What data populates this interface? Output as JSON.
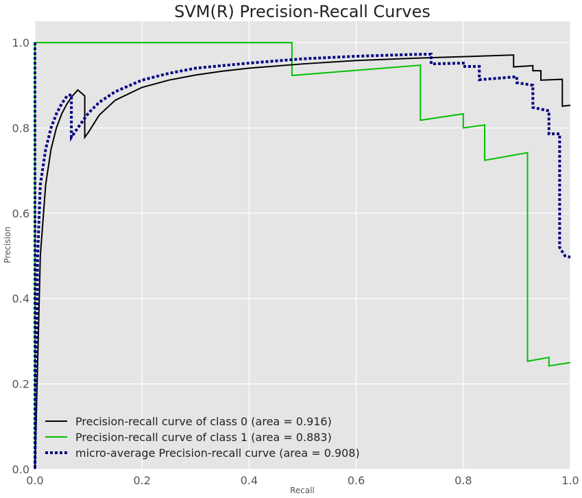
{
  "chart_data": {
    "type": "line",
    "title": "SVM(R) Precision-Recall Curves",
    "xlabel": "Recall",
    "ylabel": "Precision",
    "xlim": [
      0,
      1
    ],
    "ylim": [
      0,
      1.05
    ],
    "xticks": [
      "0.0",
      "0.2",
      "0.4",
      "0.6",
      "0.8",
      "1.0"
    ],
    "yticks": [
      "0.0",
      "0.2",
      "0.4",
      "0.6",
      "0.8",
      "1.0"
    ],
    "grid": true,
    "legend_position": "lower-left",
    "background_color": "#e5e5e5",
    "series": [
      {
        "name": "Precision-recall curve of class 0 (area = 0.916)",
        "color": "#000000",
        "style": "solid",
        "x": [
          0,
          0.005,
          0.01,
          0.02,
          0.03,
          0.04,
          0.05,
          0.06,
          0.07,
          0.08,
          0.093,
          0.093,
          0.1,
          0.12,
          0.15,
          0.2,
          0.25,
          0.3,
          0.35,
          0.4,
          0.5,
          0.6,
          0.7,
          0.8,
          0.894,
          0.894,
          0.93,
          0.93,
          0.945,
          0.945,
          0.985,
          0.985,
          1.0
        ],
        "y": [
          0,
          0.25,
          0.5,
          0.667,
          0.75,
          0.8,
          0.833,
          0.857,
          0.875,
          0.889,
          0.875,
          0.778,
          0.79,
          0.83,
          0.865,
          0.895,
          0.912,
          0.924,
          0.933,
          0.94,
          0.95,
          0.958,
          0.963,
          0.967,
          0.971,
          0.943,
          0.946,
          0.934,
          0.934,
          0.912,
          0.914,
          0.851,
          0.853
        ]
      },
      {
        "name": "Precision-recall curve of class 1 (area = 0.883)",
        "color": "#00c000",
        "style": "solid",
        "x": [
          0,
          0,
          0.48,
          0.48,
          0.72,
          0.72,
          0.8,
          0.8,
          0.84,
          0.84,
          0.92,
          0.92,
          0.96,
          0.96,
          1.0
        ],
        "y": [
          0,
          1.0,
          1.0,
          0.923,
          0.947,
          0.818,
          0.833,
          0.8,
          0.807,
          0.724,
          0.742,
          0.253,
          0.262,
          0.242,
          0.25
        ]
      },
      {
        "name": "micro-average Precision-recall curve (area = 0.908)",
        "color": "#000080",
        "style": "dotted",
        "x": [
          0,
          0,
          0.005,
          0.01,
          0.02,
          0.03,
          0.04,
          0.05,
          0.06,
          0.068,
          0.068,
          0.08,
          0.1,
          0.12,
          0.15,
          0.2,
          0.25,
          0.3,
          0.4,
          0.5,
          0.6,
          0.7,
          0.74,
          0.74,
          0.8,
          0.8,
          0.83,
          0.83,
          0.9,
          0.9,
          0.93,
          0.93,
          0.96,
          0.96,
          0.98,
          0.98,
          0.99,
          1.0
        ],
        "y": [
          1.0,
          0,
          0.5,
          0.667,
          0.75,
          0.8,
          0.833,
          0.857,
          0.875,
          0.878,
          0.778,
          0.8,
          0.835,
          0.86,
          0.885,
          0.912,
          0.928,
          0.94,
          0.952,
          0.962,
          0.968,
          0.972,
          0.973,
          0.95,
          0.952,
          0.944,
          0.944,
          0.913,
          0.92,
          0.906,
          0.9,
          0.848,
          0.84,
          0.786,
          0.786,
          0.52,
          0.5,
          0.497
        ]
      }
    ]
  }
}
